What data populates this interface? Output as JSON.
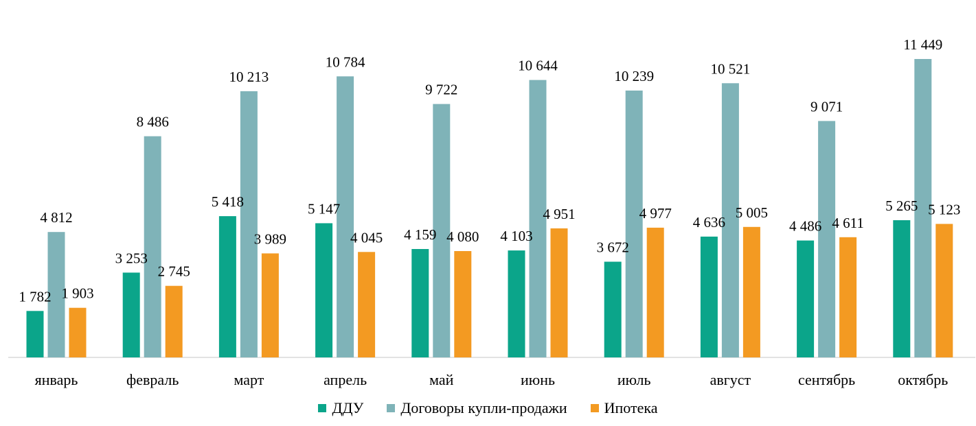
{
  "chart_data": {
    "type": "bar",
    "categories": [
      "январь",
      "февраль",
      "март",
      "апрель",
      "май",
      "июнь",
      "июль",
      "август",
      "сентябрь",
      "октябрь"
    ],
    "series": [
      {
        "name": "ДДУ",
        "color": "#0ba58a",
        "values": [
          1782,
          3253,
          5418,
          5147,
          4159,
          4103,
          3672,
          4636,
          4486,
          5265
        ],
        "labels": [
          "1 782",
          "3 253",
          "5 418",
          "5 147",
          "4 159",
          "4 103",
          "3 672",
          "4 636",
          "4 486",
          "5 265"
        ]
      },
      {
        "name": "Договоры купли-продажи",
        "color": "#7fb3b8",
        "values": [
          4812,
          8486,
          10213,
          10784,
          9722,
          10644,
          10239,
          10521,
          9071,
          11449
        ],
        "labels": [
          "4 812",
          "8 486",
          "10 213",
          "10 784",
          "9 722",
          "10 644",
          "10 239",
          "10 521",
          "9 071",
          "11 449"
        ]
      },
      {
        "name": "Ипотека",
        "color": "#f39a22",
        "values": [
          1903,
          2745,
          3989,
          4045,
          4080,
          4951,
          4977,
          5005,
          4611,
          5123
        ],
        "labels": [
          "1 903",
          "2 745",
          "3 989",
          "4 045",
          "4 080",
          "4 951",
          "4 977",
          "5 005",
          "4 611",
          "5 123"
        ]
      }
    ],
    "ylim": [
      0,
      12000
    ],
    "grid": false,
    "legend_position": "bottom",
    "axis_color": "#d9d9d9"
  }
}
